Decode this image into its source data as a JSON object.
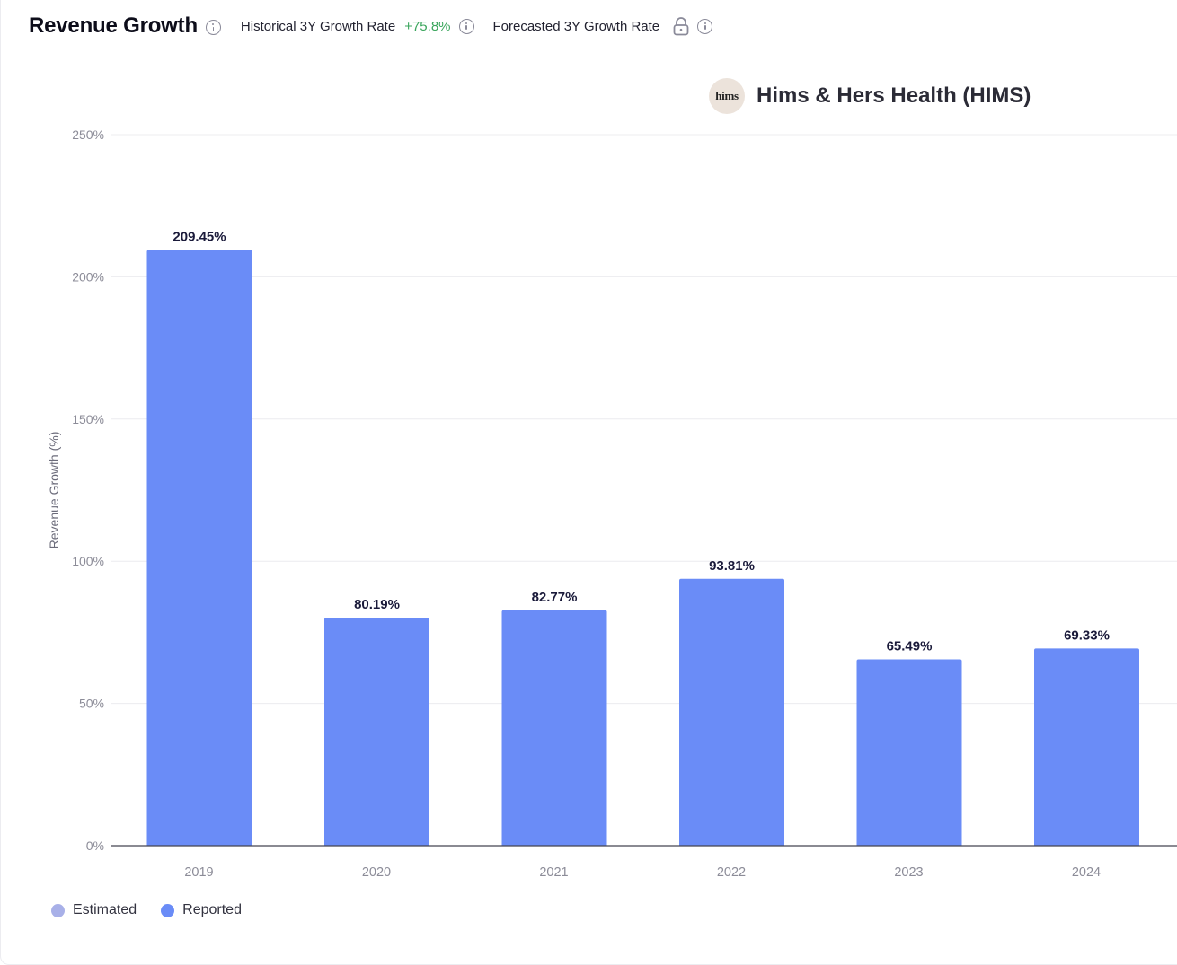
{
  "header": {
    "title": "Revenue Growth",
    "historical_label": "Historical 3Y Growth Rate",
    "historical_value": "+75.8%",
    "forecast_label": "Forecasted 3Y Growth Rate"
  },
  "company": {
    "logo_text": "hims",
    "name": "Hims & Hers Health (HIMS)"
  },
  "colors": {
    "reported": "#6a8cf7",
    "estimated": "#a8b0e8",
    "positive": "#3aa55c"
  },
  "legend": {
    "estimated_label": "Estimated",
    "reported_label": "Reported"
  },
  "chart_data": {
    "type": "bar",
    "categories": [
      "2019",
      "2020",
      "2021",
      "2022",
      "2023",
      "2024"
    ],
    "values": [
      209.45,
      80.19,
      82.77,
      93.81,
      65.49,
      69.33
    ],
    "value_labels": [
      "209.45%",
      "80.19%",
      "82.77%",
      "93.81%",
      "65.49%",
      "69.33%"
    ],
    "series_status": [
      "Reported",
      "Reported",
      "Reported",
      "Reported",
      "Reported",
      "Reported"
    ],
    "ylabel": "Revenue Growth (%)",
    "ylim": [
      0,
      250
    ],
    "yticks": [
      0,
      50,
      100,
      150,
      200,
      250
    ],
    "ytick_labels": [
      "0%",
      "50%",
      "100%",
      "150%",
      "200%",
      "250%"
    ],
    "grid": true,
    "legend_position": "bottom-left"
  }
}
